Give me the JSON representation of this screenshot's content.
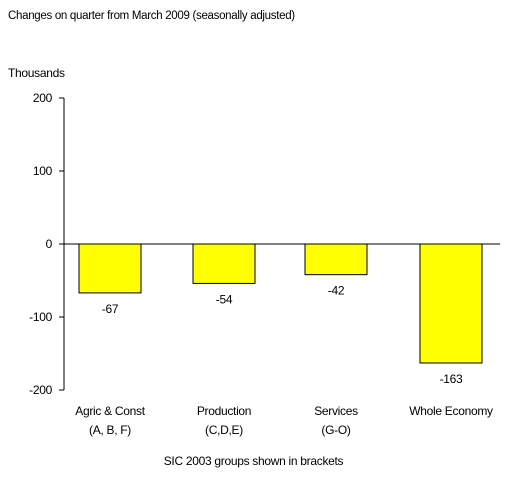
{
  "chart_data": {
    "type": "bar",
    "subtitle": "Changes on quarter from March 2009  (seasonally adjusted)",
    "ylabel": "Thousands",
    "categories": [
      [
        "Agric & Const",
        "(A, B, F)"
      ],
      [
        "Production",
        "(C,D,E)"
      ],
      [
        "Services",
        "(G-O)"
      ],
      [
        "Whole Economy",
        ""
      ]
    ],
    "values": [
      -67,
      -54,
      -42,
      -163
    ],
    "data_labels": [
      "-67",
      "-54",
      "-42",
      "-163"
    ],
    "ylim": [
      -200,
      200
    ],
    "yticks": [
      200,
      100,
      0,
      -100,
      -200
    ],
    "grid": false,
    "bar_color": "#ffff00",
    "bar_edge_color": "#000000",
    "footnote": "SIC 2003 groups shown in brackets"
  }
}
